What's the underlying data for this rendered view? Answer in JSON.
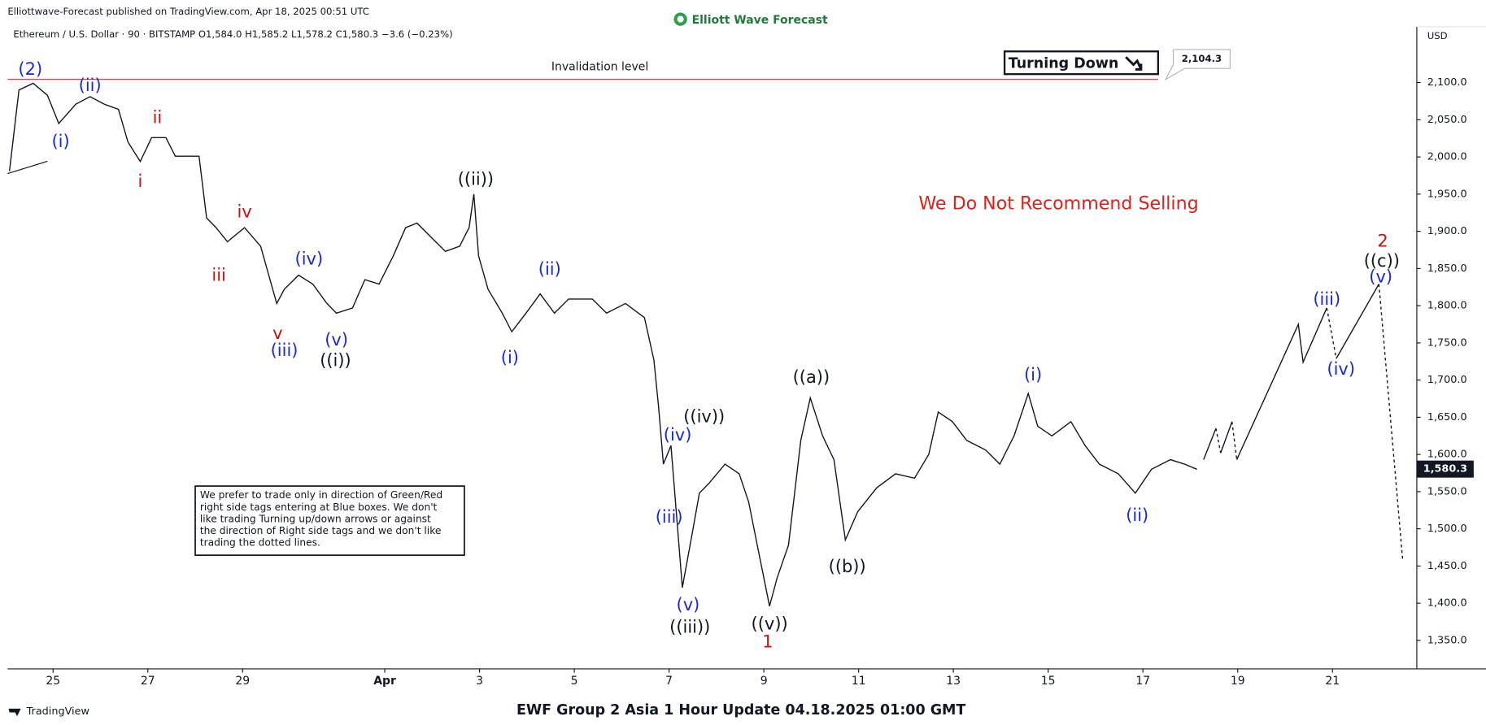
{
  "header": {
    "published": "Elliottwave-Forecast published on TradingView.com, Apr 18, 2025 00:51 UTC",
    "logo": "Elliott Wave Forecast",
    "symbol_line": "Ethereum / U.S. Dollar · 90 · BITSTAMP  O1,584.0  H1,585.2  L1,578.2  C1,580.3  −3.6 (−0.23%)",
    "currency": "USD"
  },
  "chart_data": {
    "type": "line",
    "xlim": [
      24.04,
      53.78
    ],
    "ylim": [
      1313,
      2175
    ],
    "xticks": [
      {
        "value": 25,
        "label": "25"
      },
      {
        "value": 27,
        "label": "27"
      },
      {
        "value": 29,
        "label": "29"
      },
      {
        "value": 32,
        "label": "Apr"
      },
      {
        "value": 34,
        "label": "3"
      },
      {
        "value": 36,
        "label": "5"
      },
      {
        "value": 38,
        "label": "7"
      },
      {
        "value": 40,
        "label": "9"
      },
      {
        "value": 42,
        "label": "11"
      },
      {
        "value": 44,
        "label": "13"
      },
      {
        "value": 46,
        "label": "15"
      },
      {
        "value": 48,
        "label": "17"
      },
      {
        "value": 50,
        "label": "19"
      },
      {
        "value": 52,
        "label": "21"
      }
    ],
    "yticks": [
      {
        "value": 1350,
        "label": "1,350.0"
      },
      {
        "value": 1400,
        "label": "1,400.0"
      },
      {
        "value": 1450,
        "label": "1,450.0"
      },
      {
        "value": 1500,
        "label": "1,500.0"
      },
      {
        "value": 1550,
        "label": "1,550.0"
      },
      {
        "value": 1600,
        "label": "1,600.0"
      },
      {
        "value": 1650,
        "label": "1,650.0"
      },
      {
        "value": 1700,
        "label": "1,700.0"
      },
      {
        "value": 1750,
        "label": "1,750.0"
      },
      {
        "value": 1800,
        "label": "1,800.0"
      },
      {
        "value": 1850,
        "label": "1,850.0"
      },
      {
        "value": 1900,
        "label": "1,900.0"
      },
      {
        "value": 1950,
        "label": "1,950.0"
      },
      {
        "value": 2000,
        "label": "2,000.0"
      },
      {
        "value": 2050,
        "label": "2,050.0"
      },
      {
        "value": 2100,
        "label": "2,100.0"
      }
    ],
    "series": [
      {
        "color": "#131722",
        "dashed": false,
        "x": [
          24.08,
          24.28,
          24.58,
          24.88,
          25.12,
          25.48,
          25.78,
          26.08,
          26.38,
          26.58,
          26.84,
          27.08,
          27.38,
          27.58,
          28.08,
          28.24,
          28.44,
          28.68,
          29.04,
          29.38,
          29.72,
          29.88,
          30.18,
          30.48,
          30.78,
          30.98,
          31.32,
          31.58,
          31.88,
          32.18,
          32.44,
          32.68,
          32.98,
          33.28,
          33.58,
          33.78,
          33.88,
          33.98,
          34.18,
          34.48,
          34.68,
          34.98,
          35.28,
          35.58,
          35.88,
          36.38,
          36.68,
          37.08,
          37.48,
          37.68,
          37.78,
          37.88,
          38.04,
          38.28,
          38.48,
          38.64,
          38.84,
          39.18,
          39.48,
          39.68,
          39.88,
          40.12,
          40.28,
          40.52,
          40.78,
          40.98,
          41.24,
          41.48,
          41.72,
          41.98,
          42.38,
          42.78,
          43.18,
          43.48,
          43.68,
          43.98,
          44.28,
          44.68,
          44.98,
          45.28,
          45.58,
          45.78,
          46.08,
          46.48,
          46.78,
          47.08,
          47.48,
          47.84,
          48.18,
          48.58,
          48.88,
          49.14
        ],
        "values": [
          1981,
          2090,
          2099,
          2083,
          2045,
          2071,
          2081,
          2071,
          2064,
          2020,
          1994,
          2026,
          2026,
          2001,
          2001,
          1918,
          1905,
          1886,
          1905,
          1880,
          1803,
          1822,
          1841,
          1829,
          1803,
          1790,
          1797,
          1835,
          1829,
          1867,
          1905,
          1911,
          1892,
          1873,
          1880,
          1905,
          1950,
          1867,
          1822,
          1790,
          1765,
          1790,
          1816,
          1790,
          1809,
          1809,
          1790,
          1803,
          1784,
          1727,
          1663,
          1587,
          1612,
          1421,
          1491,
          1548,
          1561,
          1587,
          1574,
          1536,
          1472,
          1396,
          1434,
          1478,
          1619,
          1676,
          1625,
          1593,
          1485,
          1523,
          1555,
          1574,
          1568,
          1600,
          1657,
          1644,
          1619,
          1606,
          1587,
          1625,
          1682,
          1638,
          1625,
          1644,
          1612,
          1587,
          1574,
          1548,
          1580,
          1593,
          1587,
          1580
        ]
      },
      {
        "color": "#131722",
        "dashed": false,
        "x": [
          49.28,
          49.54,
          null,
          49.64,
          49.88,
          null,
          49.98,
          51.28,
          51.38,
          51.88,
          null,
          52.08,
          52.98
        ],
        "values": [
          1593,
          1635,
          null,
          1602,
          1644,
          null,
          1593,
          1775,
          1724,
          1797,
          null,
          1729,
          1829
        ]
      },
      {
        "color": "#131722",
        "dashed": true,
        "x": [
          49.54,
          49.64,
          null,
          49.88,
          49.98,
          null,
          51.88,
          52.08,
          null,
          52.98,
          53.48
        ],
        "values": [
          1635,
          1602,
          null,
          1644,
          1593,
          null,
          1797,
          1729,
          null,
          1829,
          1459
        ]
      }
    ],
    "reference_line": {
      "value": 2104.3,
      "label": "2,104.3",
      "text": "Invalidation level",
      "color": "#f23645"
    },
    "last_price": {
      "value": 1580.3,
      "label": "1,580.3"
    },
    "wave_labels": [
      {
        "text": "(2)",
        "color": "#1a2ad8",
        "x": 24.52,
        "y": 2117
      },
      {
        "text": "(ii)",
        "color": "#1a2ad8",
        "x": 25.78,
        "y": 2095
      },
      {
        "text": "(i)",
        "color": "#1a2ad8",
        "x": 25.16,
        "y": 2020
      },
      {
        "text": "ii",
        "color": "#d01010",
        "x": 27.2,
        "y": 2052
      },
      {
        "text": "i",
        "color": "#d01010",
        "x": 26.84,
        "y": 1966
      },
      {
        "text": "iv",
        "color": "#d01010",
        "x": 29.04,
        "y": 1925
      },
      {
        "text": "iii",
        "color": "#d01010",
        "x": 28.5,
        "y": 1840
      },
      {
        "text": "(iv)",
        "color": "#1a2ad8",
        "x": 30.4,
        "y": 1862
      },
      {
        "text": "v",
        "color": "#d01010",
        "x": 29.74,
        "y": 1762
      },
      {
        "text": "(iii)",
        "color": "#1a2ad8",
        "x": 29.88,
        "y": 1739
      },
      {
        "text": "(v)",
        "color": "#1a2ad8",
        "x": 30.98,
        "y": 1753
      },
      {
        "text": "((i))",
        "color": "#131722",
        "x": 30.96,
        "y": 1725
      },
      {
        "text": "((ii))",
        "color": "#131722",
        "x": 33.92,
        "y": 1969
      },
      {
        "text": "(ii)",
        "color": "#1a2ad8",
        "x": 35.48,
        "y": 1848
      },
      {
        "text": "(i)",
        "color": "#1a2ad8",
        "x": 34.64,
        "y": 1729
      },
      {
        "text": "((a))",
        "color": "#131722",
        "x": 41.0,
        "y": 1703
      },
      {
        "text": "(iv)",
        "color": "#1a2ad8",
        "x": 38.18,
        "y": 1625
      },
      {
        "text": "((iv))",
        "color": "#131722",
        "x": 38.74,
        "y": 1650
      },
      {
        "text": "(iii)",
        "color": "#1a2ad8",
        "x": 38.0,
        "y": 1515
      },
      {
        "text": "(v)",
        "color": "#1a2ad8",
        "x": 38.4,
        "y": 1397
      },
      {
        "text": "((iii))",
        "color": "#131722",
        "x": 38.44,
        "y": 1367
      },
      {
        "text": "((v))",
        "color": "#131722",
        "x": 40.12,
        "y": 1371
      },
      {
        "text": "1",
        "color": "#d01010",
        "x": 40.08,
        "y": 1347
      },
      {
        "text": "((b))",
        "color": "#131722",
        "x": 41.76,
        "y": 1448
      },
      {
        "text": "(i)",
        "color": "#1a2ad8",
        "x": 45.68,
        "y": 1706
      },
      {
        "text": "(ii)",
        "color": "#1a2ad8",
        "x": 47.88,
        "y": 1517
      },
      {
        "text": "(iii)",
        "color": "#1a2ad8",
        "x": 51.88,
        "y": 1808
      },
      {
        "text": "(iv)",
        "color": "#1a2ad8",
        "x": 52.18,
        "y": 1714
      },
      {
        "text": "2",
        "color": "#d01010",
        "x": 53.06,
        "y": 1886
      },
      {
        "text": "((c))",
        "color": "#131722",
        "x": 53.04,
        "y": 1859
      },
      {
        "text": "(v)",
        "color": "#1a2ad8",
        "x": 53.02,
        "y": 1838
      }
    ]
  },
  "turning_box": "Turning Down",
  "recommendation": "We Do Not Recommend Selling",
  "note_lines": [
    "We prefer to trade only in direction of Green/Red",
    "right side tags entering at Blue boxes. We don't",
    "like trading Turning up/down arrows or against",
    "the direction of Right side tags and we don't like",
    "trading the dotted lines."
  ],
  "footer": {
    "brand": "TradingView",
    "title": "EWF Group 2 Asia 1 Hour Update 04.18.2025 01:00 GMT"
  }
}
